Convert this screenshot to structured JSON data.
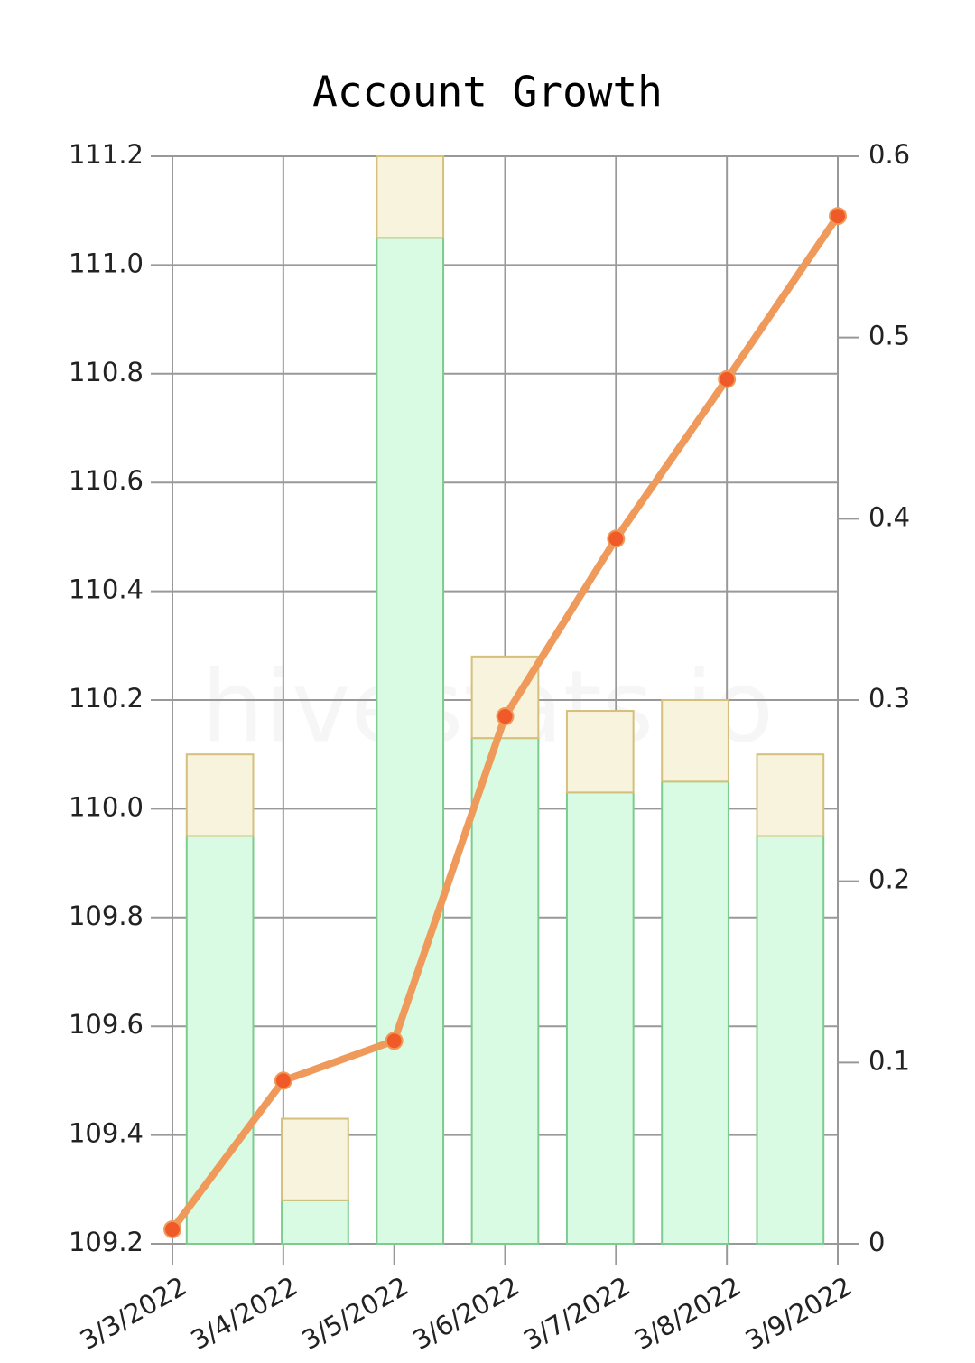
{
  "chart_data": {
    "type": "combo",
    "title": "Account Growth",
    "watermark": "hivestats.io",
    "categories": [
      "3/3/2022",
      "3/4/2022",
      "3/5/2022",
      "3/6/2022",
      "3/7/2022",
      "3/8/2022",
      "3/9/2022"
    ],
    "series": [
      {
        "type": "bar",
        "color": "#d9fbe3",
        "stroke": "#7ecb8f",
        "values": [
          109.95,
          109.28,
          111.05,
          110.13,
          110.03,
          110.05,
          109.95
        ]
      },
      {
        "type": "bar",
        "color": "#f7f3dc",
        "stroke": "#d4c07a",
        "stacked": true,
        "values": [
          0.15,
          0.15,
          0.15,
          0.15,
          0.15,
          0.15,
          0.15
        ]
      },
      {
        "type": "line",
        "color": "#ef9a5a",
        "marker_color": "#f05a28",
        "axis": "y2",
        "values": [
          0.008,
          0.09,
          0.112,
          0.291,
          0.389,
          0.477,
          0.567
        ]
      }
    ],
    "ylim": [
      109.2,
      111.2
    ],
    "yticks": [
      109.2,
      109.4,
      109.6,
      109.8,
      {
        "value": 110,
        "label": "110.0"
      },
      110.2,
      110.4,
      110.6,
      110.8,
      {
        "value": 111,
        "label": "111.0"
      },
      111.2
    ],
    "y2lim": [
      0,
      0.6
    ],
    "y2ticks": [
      0,
      0.1,
      0.2,
      0.3,
      0.4,
      0.5,
      0.6
    ],
    "grid": true
  }
}
